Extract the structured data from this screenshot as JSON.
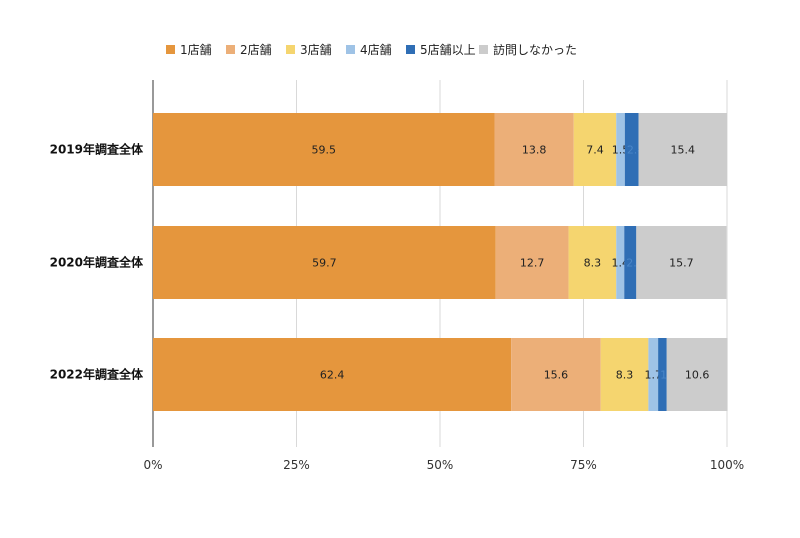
{
  "chart_data": {
    "type": "bar",
    "orientation": "horizontal",
    "stacked": true,
    "categories": [
      "2019年調査全体",
      "2020年調査全体",
      "2022年調査全体"
    ],
    "series": [
      {
        "name": "1店舗",
        "color": "#E5963D",
        "values": [
          59.5,
          59.7,
          62.4
        ]
      },
      {
        "name": "2店舗",
        "color": "#ECAF78",
        "values": [
          13.8,
          12.7,
          15.6
        ]
      },
      {
        "name": "3店舗",
        "color": "#F5D56F",
        "values": [
          7.4,
          8.3,
          8.3
        ]
      },
      {
        "name": "4店舗",
        "color": "#9FC3E6",
        "values": [
          1.5,
          1.4,
          1.7
        ]
      },
      {
        "name": "5店舗以上",
        "color": "#2F6EB5",
        "values": [
          2.4,
          2.1,
          1.5
        ]
      },
      {
        "name": "訪問しなかった",
        "color": "#CCCCCC",
        "values": [
          15.4,
          15.7,
          10.6
        ]
      }
    ],
    "xlim": [
      0,
      100
    ],
    "x_ticks": [
      "0%",
      "25%",
      "50%",
      "75%",
      "100%"
    ],
    "grid": true,
    "legend_position": "top"
  }
}
